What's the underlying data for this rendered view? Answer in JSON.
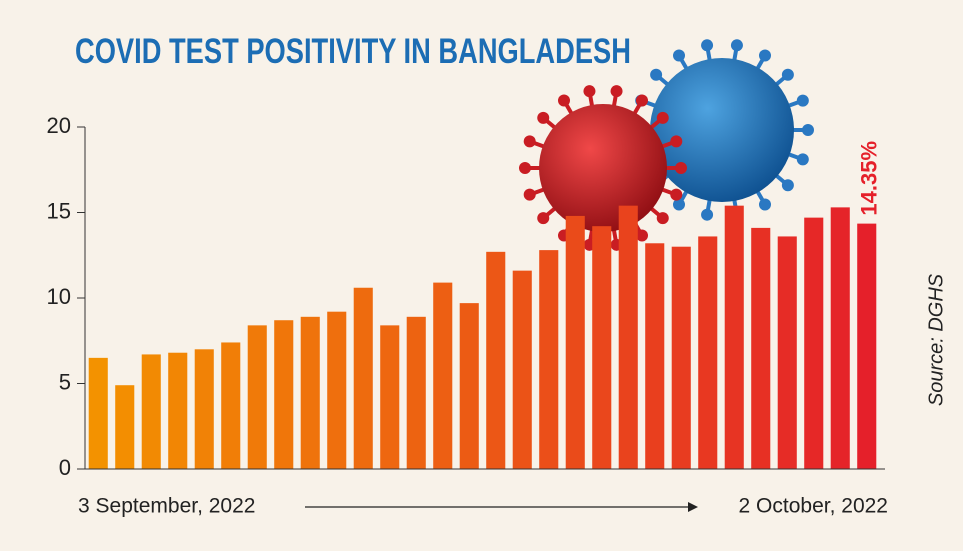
{
  "chart_data": {
    "type": "bar",
    "title": "COVID TEST POSITIVITY IN BANGLADESH",
    "source": "Source: DGHS",
    "categories": [
      "3 September, 2022",
      null,
      null,
      null,
      null,
      null,
      null,
      null,
      null,
      null,
      null,
      null,
      null,
      null,
      null,
      null,
      null,
      null,
      null,
      null,
      null,
      null,
      null,
      null,
      null,
      null,
      null,
      null,
      null,
      "2 October, 2022"
    ],
    "values": [
      6.5,
      4.9,
      6.7,
      6.8,
      7.0,
      7.4,
      8.4,
      8.7,
      8.9,
      9.2,
      10.6,
      8.4,
      8.9,
      10.9,
      9.7,
      12.7,
      11.6,
      12.8,
      14.8,
      14.2,
      15.4,
      13.2,
      13.0,
      13.6,
      15.4,
      14.1,
      13.6,
      14.7,
      15.3,
      14.35
    ],
    "value_labels": [
      null,
      null,
      null,
      null,
      null,
      null,
      null,
      null,
      null,
      null,
      null,
      null,
      null,
      null,
      null,
      null,
      null,
      null,
      null,
      null,
      null,
      null,
      null,
      null,
      null,
      null,
      null,
      null,
      null,
      "14.35%"
    ],
    "gradient": [
      "#f39200",
      "#e5202a"
    ],
    "ylim": [
      0,
      20
    ],
    "yticks": [
      0,
      5,
      10,
      15,
      20
    ]
  }
}
